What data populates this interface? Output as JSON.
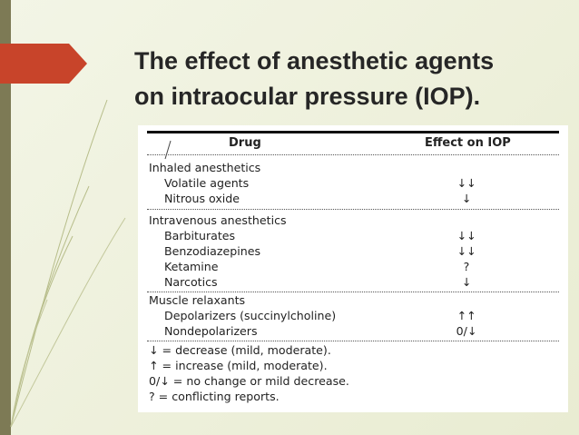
{
  "slide": {
    "title_line1": "The effect of anesthetic agents",
    "title_line2": "on intraocular pressure (IOP).",
    "accent_color": "#c8442a",
    "background_color": "#eef0dc"
  },
  "table": {
    "headers": {
      "drug": "Drug",
      "effect": "Effect on IOP"
    },
    "groups": [
      {
        "name": "Inhaled anesthetics",
        "rows": [
          {
            "drug": "Volatile agents",
            "effect": "↓↓"
          },
          {
            "drug": "Nitrous oxide",
            "effect": "↓"
          }
        ]
      },
      {
        "name": "Intravenous anesthetics",
        "rows": [
          {
            "drug": "Barbiturates",
            "effect": "↓↓"
          },
          {
            "drug": "Benzodiazepines",
            "effect": "↓↓"
          },
          {
            "drug": "Ketamine",
            "effect": "?"
          },
          {
            "drug": "Narcotics",
            "effect": "↓"
          }
        ]
      },
      {
        "name": "Muscle relaxants",
        "rows": [
          {
            "drug": "Depolarizers (succinylcholine)",
            "effect": "↑↑"
          },
          {
            "drug": "Nondepolarizers",
            "effect": "0/↓"
          }
        ]
      }
    ],
    "legend": [
      "↓ = decrease (mild, moderate).",
      "↑ = increase (mild, moderate).",
      "0/↓ = no change or mild decrease.",
      "? = conflicting reports."
    ]
  }
}
